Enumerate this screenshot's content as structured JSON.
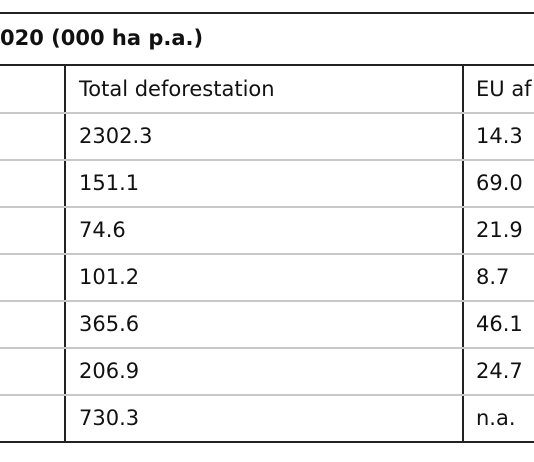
{
  "table": {
    "title": "020 (000 ha p.a.)",
    "headers": [
      "Total deforestation",
      "EU af"
    ],
    "rows": [
      [
        "2302.3",
        "14.3"
      ],
      [
        "151.1",
        "69.0"
      ],
      [
        "74.6",
        "21.9"
      ],
      [
        "101.2",
        "8.7"
      ],
      [
        "365.6",
        "46.1"
      ],
      [
        "206.9",
        "24.7"
      ],
      [
        "730.3",
        "n.a."
      ]
    ]
  }
}
